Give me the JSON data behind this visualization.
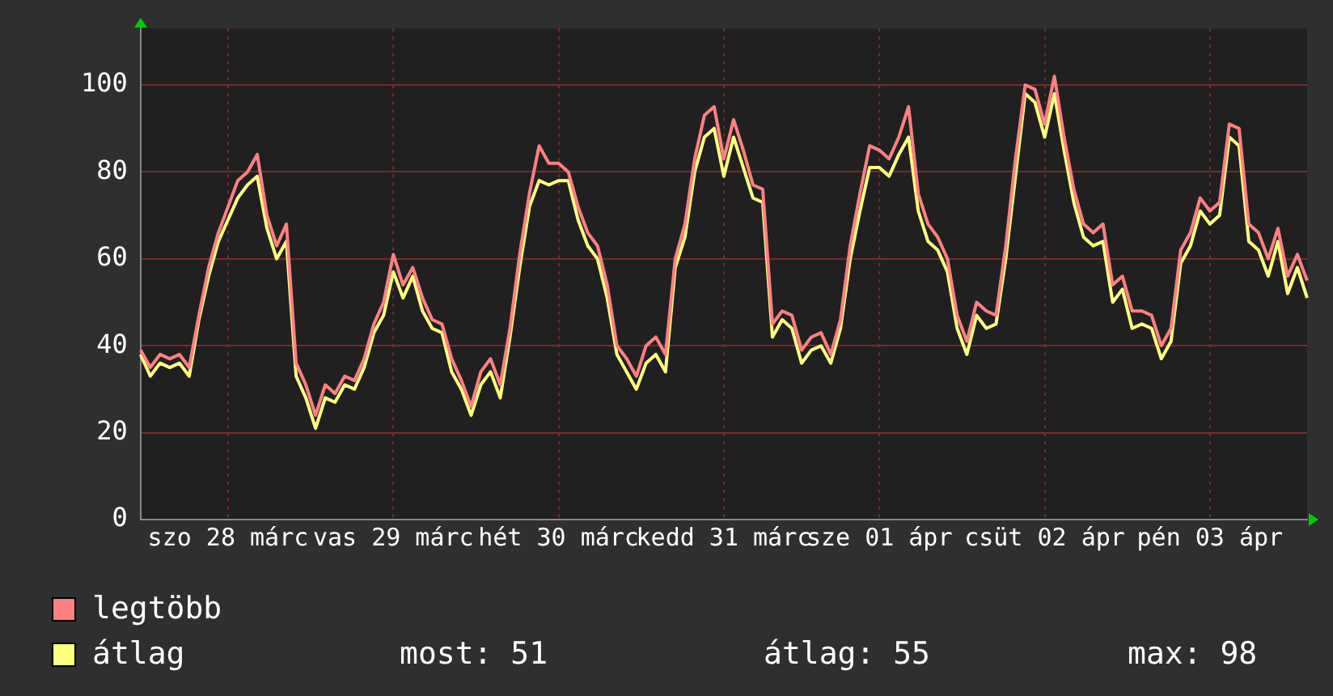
{
  "chart_data": {
    "type": "line",
    "categories": [
      null,
      null,
      null,
      null,
      null,
      null,
      null,
      null,
      null,
      "szo 28 márc",
      null,
      null,
      null,
      null,
      null,
      null,
      null,
      null,
      null,
      null,
      null,
      null,
      null,
      null,
      null,
      null,
      "vas 29 márc",
      null,
      null,
      null,
      null,
      null,
      null,
      null,
      null,
      null,
      null,
      null,
      null,
      null,
      null,
      null,
      null,
      "hét 30 márc",
      null,
      null,
      null,
      null,
      null,
      null,
      null,
      null,
      null,
      null,
      null,
      null,
      null,
      null,
      null,
      null,
      "kedd 31 márc",
      null,
      null,
      null,
      null,
      null,
      null,
      null,
      null,
      null,
      null,
      null,
      null,
      null,
      null,
      null,
      "sze 01 ápr",
      null,
      null,
      null,
      null,
      null,
      null,
      null,
      null,
      null,
      null,
      null,
      null,
      null,
      null,
      null,
      null,
      "csüt 02 ápr",
      null,
      null,
      null,
      null,
      null,
      null,
      null,
      null,
      null,
      null,
      null,
      null,
      null,
      null,
      null,
      null,
      "pén 03 ápr",
      null,
      null,
      null,
      null,
      null,
      null,
      null,
      null,
      null,
      null
    ],
    "series": [
      {
        "name": "legtöbb",
        "color": "#ff8080",
        "values": [
          39,
          35,
          38,
          37,
          38,
          35,
          47,
          58,
          66,
          72,
          78,
          80,
          84,
          70,
          63,
          68,
          36,
          31,
          24,
          31,
          29,
          33,
          32,
          37,
          45,
          50,
          61,
          54,
          58,
          51,
          46,
          45,
          37,
          32,
          26,
          34,
          37,
          31,
          44,
          61,
          75,
          86,
          82,
          82,
          80,
          72,
          66,
          63,
          54,
          40,
          37,
          33,
          40,
          42,
          38,
          60,
          68,
          83,
          93,
          95,
          83,
          92,
          85,
          77,
          76,
          45,
          48,
          47,
          39,
          42,
          43,
          38,
          46,
          63,
          75,
          86,
          85,
          83,
          88,
          95,
          75,
          68,
          65,
          60,
          47,
          41,
          50,
          48,
          47,
          63,
          83,
          100,
          99,
          91,
          102,
          88,
          76,
          68,
          66,
          68,
          54,
          56,
          48,
          48,
          47,
          40,
          44,
          62,
          66,
          74,
          71,
          73,
          91,
          90,
          68,
          66,
          60,
          67,
          56,
          61,
          55
        ]
      },
      {
        "name": "átlag",
        "color": "#ffff80",
        "values": [
          38,
          33,
          36,
          35,
          36,
          33,
          46,
          56,
          64,
          69,
          74,
          77,
          79,
          67,
          60,
          64,
          33,
          28,
          21,
          28,
          27,
          31,
          30,
          35,
          43,
          47,
          57,
          51,
          56,
          48,
          44,
          43,
          34,
          30,
          24,
          31,
          34,
          28,
          42,
          58,
          72,
          78,
          77,
          78,
          78,
          69,
          63,
          60,
          51,
          38,
          34,
          30,
          36,
          38,
          34,
          58,
          65,
          80,
          88,
          90,
          79,
          88,
          81,
          74,
          73,
          42,
          46,
          44,
          36,
          39,
          40,
          36,
          44,
          60,
          71,
          81,
          81,
          79,
          84,
          88,
          71,
          64,
          62,
          57,
          44,
          38,
          47,
          44,
          45,
          60,
          79,
          98,
          96,
          88,
          98,
          85,
          73,
          65,
          63,
          64,
          50,
          53,
          44,
          45,
          44,
          37,
          41,
          59,
          63,
          71,
          68,
          70,
          88,
          86,
          64,
          62,
          56,
          64,
          52,
          58,
          51
        ]
      }
    ],
    "ylim": [
      0,
      113
    ],
    "yticks": [
      0,
      20,
      40,
      60,
      80,
      100
    ],
    "grid": true,
    "legend": "bottom left",
    "marker": "none",
    "line_style": "solid",
    "annotations": [
      "most: 51",
      "átlag: 55",
      "max: 98"
    ]
  }
}
